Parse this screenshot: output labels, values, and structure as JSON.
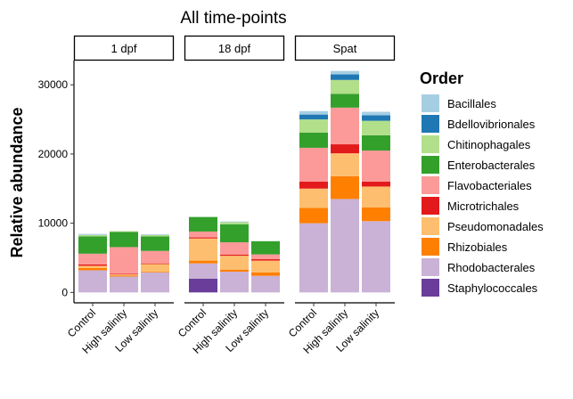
{
  "chart_data": {
    "type": "bar",
    "stacked": true,
    "title": "All time-points",
    "xlabel": "",
    "ylabel": "Relative abundance",
    "ylim": [
      -1500,
      33500
    ],
    "yticks": [
      0,
      10000,
      20000,
      30000
    ],
    "ytick_labels": [
      "0",
      "10000",
      "20000",
      "30000"
    ],
    "legend_position": "right",
    "legend_title": "Order",
    "grid": false,
    "categories": [
      "Control",
      "High salinity",
      "Low salinity"
    ],
    "orders": [
      {
        "name": "Bacillales",
        "color": "#A6CEE3"
      },
      {
        "name": "Bdellovibrionales",
        "color": "#1F78B4"
      },
      {
        "name": "Chitinophagales",
        "color": "#B2DF8A"
      },
      {
        "name": "Enterobacterales",
        "color": "#33A02C"
      },
      {
        "name": "Flavobacteriales",
        "color": "#FB9A99"
      },
      {
        "name": "Microtrichales",
        "color": "#E31A1C"
      },
      {
        "name": "Pseudomonadales",
        "color": "#FDBF6F"
      },
      {
        "name": "Rhizobiales",
        "color": "#FF7F00"
      },
      {
        "name": "Rhodobacterales",
        "color": "#CAB2D6"
      },
      {
        "name": "Staphylococcales",
        "color": "#6A3D9A"
      }
    ],
    "stack_order_bottom_to_top": [
      "Staphylococcales",
      "Rhodobacterales",
      "Rhizobiales",
      "Pseudomonadales",
      "Microtrichales",
      "Flavobacteriales",
      "Enterobacterales",
      "Chitinophagales",
      "Bdellovibrionales",
      "Bacillales"
    ],
    "facets": [
      {
        "label": "1 dpf",
        "bars": [
          {
            "category": "Control",
            "values": {
              "Staphylococcales": 0,
              "Rhodobacterales": 3200,
              "Rhizobiales": 350,
              "Pseudomonadales": 300,
              "Microtrichales": 200,
              "Flavobacteriales": 1550,
              "Enterobacterales": 2500,
              "Chitinophagales": 200,
              "Bdellovibrionales": 0,
              "Bacillales": 150
            }
          },
          {
            "category": "High salinity",
            "values": {
              "Staphylococcales": 0,
              "Rhodobacterales": 2300,
              "Rhizobiales": 150,
              "Pseudomonadales": 150,
              "Microtrichales": 100,
              "Flavobacteriales": 3850,
              "Enterobacterales": 2200,
              "Chitinophagales": 100,
              "Bdellovibrionales": 0,
              "Bacillales": 0
            }
          },
          {
            "category": "Low salinity",
            "values": {
              "Staphylococcales": 0,
              "Rhodobacterales": 2900,
              "Rhizobiales": 100,
              "Pseudomonadales": 1100,
              "Microtrichales": 100,
              "Flavobacteriales": 1800,
              "Enterobacterales": 2100,
              "Chitinophagales": 200,
              "Bdellovibrionales": 0,
              "Bacillales": 100
            }
          }
        ]
      },
      {
        "label": "18 dpf",
        "bars": [
          {
            "category": "Control",
            "values": {
              "Staphylococcales": 2000,
              "Rhodobacterales": 2200,
              "Rhizobiales": 400,
              "Pseudomonadales": 3200,
              "Microtrichales": 150,
              "Flavobacteriales": 850,
              "Enterobacterales": 2100,
              "Chitinophagales": 0,
              "Bdellovibrionales": 0,
              "Bacillales": 0
            }
          },
          {
            "category": "High salinity",
            "values": {
              "Staphylococcales": 0,
              "Rhodobacterales": 3000,
              "Rhizobiales": 300,
              "Pseudomonadales": 2000,
              "Microtrichales": 150,
              "Flavobacteriales": 1800,
              "Enterobacterales": 2600,
              "Chitinophagales": 300,
              "Bdellovibrionales": 0,
              "Bacillales": 100
            }
          },
          {
            "category": "Low salinity",
            "values": {
              "Staphylococcales": 0,
              "Rhodobacterales": 2400,
              "Rhizobiales": 500,
              "Pseudomonadales": 1700,
              "Microtrichales": 200,
              "Flavobacteriales": 700,
              "Enterobacterales": 1900,
              "Chitinophagales": 0,
              "Bdellovibrionales": 0,
              "Bacillales": 0
            }
          }
        ]
      },
      {
        "label": "Spat",
        "bars": [
          {
            "category": "Control",
            "values": {
              "Staphylococcales": 0,
              "Rhodobacterales": 10000,
              "Rhizobiales": 2200,
              "Pseudomonadales": 2800,
              "Microtrichales": 1000,
              "Flavobacteriales": 4900,
              "Enterobacterales": 2200,
              "Chitinophagales": 1900,
              "Bdellovibrionales": 700,
              "Bacillales": 500
            }
          },
          {
            "category": "High salinity",
            "values": {
              "Staphylococcales": 0,
              "Rhodobacterales": 13500,
              "Rhizobiales": 3300,
              "Pseudomonadales": 3300,
              "Microtrichales": 1300,
              "Flavobacteriales": 5300,
              "Enterobacterales": 2000,
              "Chitinophagales": 2000,
              "Bdellovibrionales": 800,
              "Bacillales": 500
            }
          },
          {
            "category": "Low salinity",
            "values": {
              "Staphylococcales": 0,
              "Rhodobacterales": 10300,
              "Rhizobiales": 2000,
              "Pseudomonadales": 3000,
              "Microtrichales": 700,
              "Flavobacteriales": 4500,
              "Enterobacterales": 2200,
              "Chitinophagales": 2100,
              "Bdellovibrionales": 800,
              "Bacillales": 500
            }
          }
        ]
      }
    ]
  }
}
